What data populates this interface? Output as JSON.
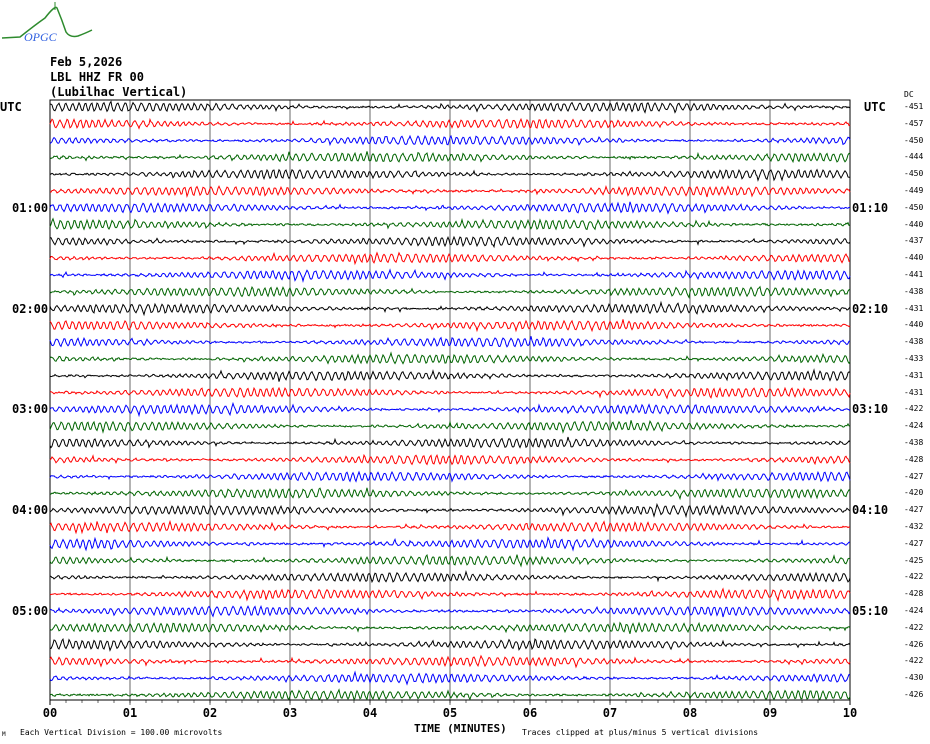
{
  "logo_text": "OPGC",
  "header": {
    "date": "Feb 5,2026",
    "station": "LBL HHZ FR 00",
    "location": "(Lubilhac Vertical)"
  },
  "chart_data": {
    "type": "line",
    "subtype": "helicorder",
    "left_timezone": "UTC",
    "right_timezone": "UTC",
    "dc_label": "DC",
    "left_hour_labels": [
      {
        "row": 6,
        "label": "01:00"
      },
      {
        "row": 12,
        "label": "02:00"
      },
      {
        "row": 18,
        "label": "03:00"
      },
      {
        "row": 24,
        "label": "04:00"
      },
      {
        "row": 30,
        "label": "05:00"
      }
    ],
    "right_hour_labels": [
      {
        "row": 6,
        "label": "01:10"
      },
      {
        "row": 12,
        "label": "02:10"
      },
      {
        "row": 18,
        "label": "03:10"
      },
      {
        "row": 24,
        "label": "04:10"
      },
      {
        "row": 30,
        "label": "05:10"
      }
    ],
    "dc_offsets": [
      -451,
      -457,
      -450,
      -444,
      -450,
      -449,
      -450,
      -440,
      -437,
      -440,
      -441,
      -438,
      -431,
      -440,
      -438,
      -433,
      -431,
      -431,
      -422,
      -424,
      -438,
      -428,
      -427,
      -420,
      -427,
      -432,
      -427,
      -425,
      -422,
      -428,
      -424,
      -422,
      -426,
      -422,
      -430,
      -426
    ],
    "trace_colors": [
      "#000000",
      "#ff0000",
      "#0000ff",
      "#006400"
    ],
    "x_ticks": [
      "00",
      "01",
      "02",
      "03",
      "04",
      "05",
      "06",
      "07",
      "08",
      "09",
      "10"
    ],
    "xlim": [
      0,
      10
    ],
    "xlabel": "TIME (MINUTES)",
    "grid": true,
    "scale_note": "Each Vertical Division =  100.00 microvolts",
    "clip_note": "Traces clipped at plus/minus 5 vertical divisions",
    "corner_mark": "M"
  }
}
